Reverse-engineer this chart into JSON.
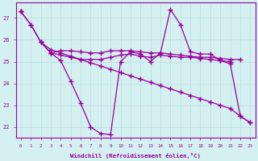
{
  "x": [
    0,
    1,
    2,
    3,
    4,
    5,
    6,
    7,
    8,
    9,
    10,
    11,
    12,
    13,
    14,
    15,
    16,
    17,
    18,
    19,
    20,
    21,
    22,
    23
  ],
  "line1": [
    27.3,
    26.7,
    25.9,
    25.55,
    25.4,
    25.25,
    25.1,
    24.95,
    24.8,
    24.65,
    24.5,
    24.35,
    24.2,
    24.05,
    23.9,
    23.75,
    23.6,
    23.45,
    23.3,
    23.15,
    23.0,
    22.85,
    22.5,
    22.2
  ],
  "line2": [
    27.3,
    26.7,
    25.9,
    25.4,
    25.05,
    24.1,
    23.1,
    22.0,
    21.7,
    21.65,
    25.0,
    25.45,
    25.35,
    25.0,
    25.4,
    27.4,
    26.7,
    25.45,
    25.35,
    25.35,
    25.05,
    24.9,
    22.5,
    22.2
  ],
  "line3": [
    27.3,
    null,
    25.9,
    25.4,
    25.5,
    25.5,
    25.45,
    25.4,
    25.4,
    25.5,
    25.5,
    25.5,
    25.45,
    25.4,
    25.4,
    25.35,
    25.3,
    25.25,
    25.2,
    25.2,
    25.15,
    25.1,
    25.1,
    null
  ],
  "line4": [
    null,
    null,
    null,
    25.4,
    25.3,
    25.2,
    25.1,
    25.1,
    25.1,
    25.2,
    25.3,
    25.35,
    25.25,
    25.2,
    25.3,
    25.25,
    25.2,
    25.2,
    25.15,
    25.1,
    25.05,
    25.0,
    null,
    null
  ],
  "color": "#990099",
  "bg_color": "#d4f0f0",
  "grid_color": "#b8dede",
  "xlabel": "Windchill (Refroidissement éolien,°C)",
  "ylim": [
    21.5,
    27.7
  ],
  "xlim": [
    -0.5,
    23.5
  ],
  "yticks": [
    22,
    23,
    24,
    25,
    26,
    27
  ],
  "xticks": [
    0,
    1,
    2,
    3,
    4,
    5,
    6,
    7,
    8,
    9,
    10,
    11,
    12,
    13,
    14,
    15,
    16,
    17,
    18,
    19,
    20,
    21,
    22,
    23
  ]
}
